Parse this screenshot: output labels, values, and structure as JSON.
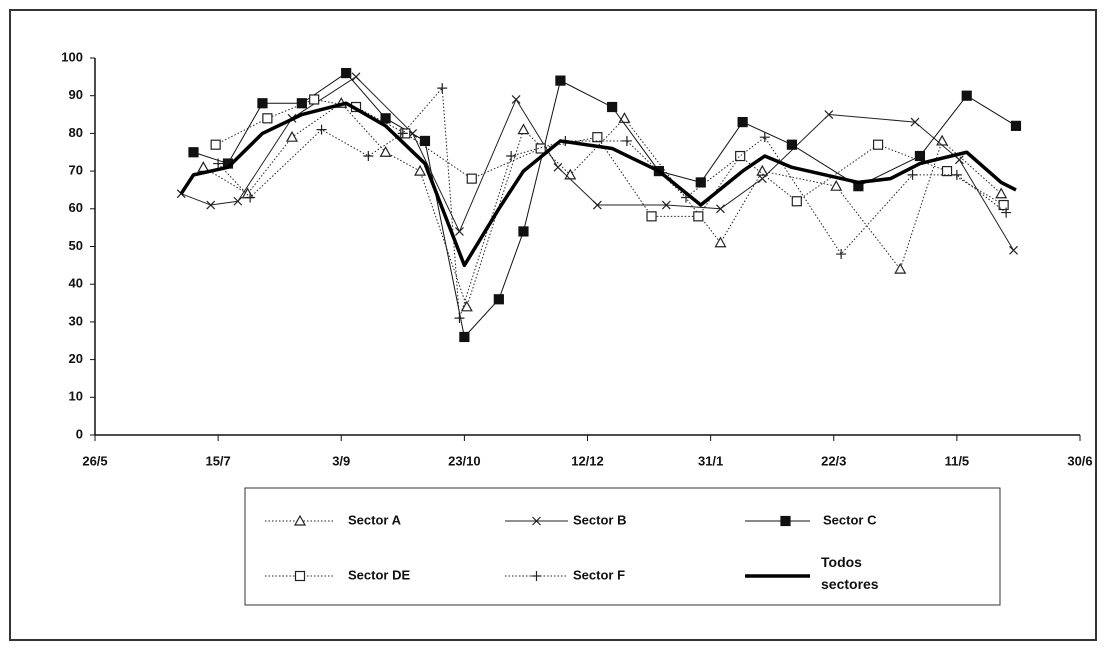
{
  "chart_data": {
    "type": "line",
    "xlim": [
      0,
      400
    ],
    "xticks": [
      {
        "value": 0,
        "label": "26/5"
      },
      {
        "value": 50,
        "label": "15/7"
      },
      {
        "value": 100,
        "label": "3/9"
      },
      {
        "value": 150,
        "label": "23/10"
      },
      {
        "value": 200,
        "label": "12/12"
      },
      {
        "value": 250,
        "label": "31/1"
      },
      {
        "value": 300,
        "label": "22/3"
      },
      {
        "value": 350,
        "label": "11/5"
      },
      {
        "value": 400,
        "label": "30/6"
      }
    ],
    "ylim": [
      0,
      100
    ],
    "yticks": [
      0,
      10,
      20,
      30,
      40,
      50,
      60,
      70,
      80,
      90,
      100
    ],
    "series": [
      {
        "name": "Sector A",
        "color": "#222",
        "marker": "triangle",
        "dash": "dotted",
        "x": [
          44,
          62,
          80,
          100,
          118,
          132,
          151,
          174,
          193,
          215,
          254,
          271,
          301,
          327,
          344,
          368
        ],
        "values": [
          71,
          64,
          79,
          88,
          75,
          70,
          34,
          81,
          69,
          84,
          51,
          70,
          66,
          44,
          78,
          64
        ]
      },
      {
        "name": "Sector B",
        "color": "#222",
        "marker": "x",
        "dash": "solid",
        "x": [
          35,
          47,
          58,
          80,
          106,
          129,
          148,
          171,
          188,
          204,
          232,
          254,
          271,
          298,
          333,
          351,
          373
        ],
        "values": [
          64,
          61,
          62,
          84,
          95,
          80,
          54,
          89,
          71,
          61,
          61,
          60,
          68,
          85,
          83,
          73,
          49
        ]
      },
      {
        "name": "Sector C",
        "color": "#111",
        "marker": "square",
        "dash": "solid",
        "x": [
          40,
          54,
          68,
          84,
          102,
          118,
          134,
          150,
          164,
          174,
          189,
          210,
          229,
          246,
          263,
          283,
          310,
          335,
          354,
          374
        ],
        "values": [
          75,
          72,
          88,
          88,
          96,
          84,
          78,
          26,
          36,
          54,
          94,
          87,
          70,
          67,
          83,
          77,
          66,
          74,
          90,
          82
        ]
      },
      {
        "name": "Sector DE",
        "color": "#222",
        "marker": "open-square",
        "dash": "dotted",
        "x": [
          49,
          70,
          89,
          106,
          126,
          153,
          181,
          204,
          226,
          245,
          262,
          285,
          318,
          346,
          369
        ],
        "values": [
          77,
          84,
          89,
          87,
          80,
          68,
          76,
          79,
          58,
          58,
          74,
          62,
          77,
          70,
          61
        ]
      },
      {
        "name": "Sector F",
        "color": "#222",
        "marker": "plus",
        "dash": "dotted",
        "x": [
          50,
          63,
          92,
          111,
          125,
          141,
          148,
          169,
          191,
          216,
          240,
          272,
          303,
          332,
          350,
          370
        ],
        "values": [
          72,
          63,
          81,
          74,
          80,
          92,
          31,
          74,
          78,
          78,
          63,
          79,
          48,
          69,
          69,
          59
        ]
      },
      {
        "name": "Todos sectores",
        "color": "#000",
        "marker": "none",
        "dash": "thick",
        "x": [
          35,
          40,
          54,
          68,
          84,
          102,
          118,
          134,
          150,
          164,
          174,
          189,
          210,
          229,
          246,
          263,
          272,
          283,
          310,
          323,
          335,
          354,
          368,
          374
        ],
        "values": [
          64,
          69,
          71,
          80,
          85,
          88,
          82,
          72,
          45,
          60,
          70,
          78,
          76,
          70,
          61,
          70,
          74,
          71,
          67,
          68,
          72,
          75,
          67,
          65
        ]
      }
    ]
  }
}
